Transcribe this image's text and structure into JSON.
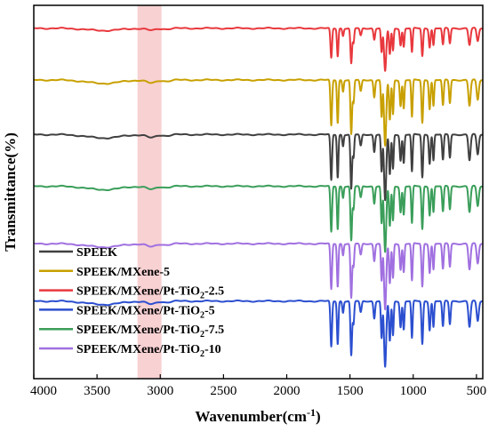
{
  "chart_data": {
    "type": "line",
    "title": "",
    "xlabel": "Wavenumber(cm",
    "xlabel_sup": "-1",
    "xlabel_close": ")",
    "ylabel": "Transmittance(%)",
    "xlim": [
      4000,
      450
    ],
    "x_reversed": true,
    "x_ticks": [
      {
        "value": 4000,
        "label": "4000"
      },
      {
        "value": 3500,
        "label": "3500"
      },
      {
        "value": 3000,
        "label": "3000"
      },
      {
        "value": 2500,
        "label": "2500"
      },
      {
        "value": 2000,
        "label": "2000"
      },
      {
        "value": 1500,
        "label": "1500"
      },
      {
        "value": 1000,
        "label": "1000"
      },
      {
        "value": 500,
        "label": "500"
      }
    ],
    "y_ticks_labeled": false,
    "grid": false,
    "legend_position": "bottom-left",
    "highlight_band": {
      "from": 3180,
      "to": 2990,
      "color": "#f4b8bb"
    },
    "legend": [
      {
        "prefix": "SPEEK",
        "sub": "",
        "suffix": "",
        "color": "#404040"
      },
      {
        "prefix": "SPEEK/MXene-5",
        "sub": "",
        "suffix": "",
        "color": "#c8a000"
      },
      {
        "prefix": "SPEEK/MXene/Pt-TiO",
        "sub": "2",
        "suffix": "-2.5",
        "color": "#e8383d"
      },
      {
        "prefix": "SPEEK/MXene/Pt-TiO",
        "sub": "2",
        "suffix": "-5",
        "color": "#2c4fd0"
      },
      {
        "prefix": "SPEEK/MXene/Pt-TiO",
        "sub": "2",
        "suffix": "-7.5",
        "color": "#3a9e5a"
      },
      {
        "prefix": "SPEEK/MXene/Pt-TiO",
        "sub": "2",
        "suffix": "-10",
        "color": "#a070e0"
      }
    ],
    "series": [
      {
        "color": "#e8383d",
        "baseline": 100,
        "amp": 0.65
      },
      {
        "color": "#c8a000",
        "baseline": 82,
        "amp": 1.0
      },
      {
        "color": "#404040",
        "baseline": 63,
        "amp": 1.0
      },
      {
        "color": "#3a9e5a",
        "baseline": 45,
        "amp": 1.0
      },
      {
        "color": "#a070e0",
        "baseline": 25,
        "amp": 1.0
      },
      {
        "color": "#2c4fd0",
        "baseline": 5,
        "amp": 1.0
      }
    ],
    "peaks": [
      {
        "x": 3450,
        "depth": 1.2,
        "width": 180
      },
      {
        "x": 3070,
        "depth": 1.1,
        "width": 50
      },
      {
        "x": 2950,
        "depth": 0.4,
        "width": 40
      },
      {
        "x": 1648,
        "depth": 16,
        "width": 9
      },
      {
        "x": 1597,
        "depth": 15,
        "width": 8
      },
      {
        "x": 1555,
        "depth": 4,
        "width": 8
      },
      {
        "x": 1490,
        "depth": 19,
        "width": 9
      },
      {
        "x": 1472,
        "depth": 8,
        "width": 8
      },
      {
        "x": 1415,
        "depth": 4,
        "width": 10
      },
      {
        "x": 1308,
        "depth": 6,
        "width": 9
      },
      {
        "x": 1250,
        "depth": 13,
        "width": 8
      },
      {
        "x": 1222,
        "depth": 23,
        "width": 12
      },
      {
        "x": 1185,
        "depth": 14,
        "width": 9
      },
      {
        "x": 1160,
        "depth": 12,
        "width": 8
      },
      {
        "x": 1100,
        "depth": 9,
        "width": 9
      },
      {
        "x": 1075,
        "depth": 10,
        "width": 8
      },
      {
        "x": 1010,
        "depth": 13,
        "width": 8
      },
      {
        "x": 928,
        "depth": 15,
        "width": 9
      },
      {
        "x": 870,
        "depth": 10,
        "width": 9
      },
      {
        "x": 840,
        "depth": 9,
        "width": 8
      },
      {
        "x": 765,
        "depth": 9,
        "width": 9
      },
      {
        "x": 710,
        "depth": 8,
        "width": 9
      },
      {
        "x": 555,
        "depth": 9,
        "width": 12
      },
      {
        "x": 490,
        "depth": 7,
        "width": 12
      }
    ],
    "ylim": [
      -22,
      108
    ]
  }
}
